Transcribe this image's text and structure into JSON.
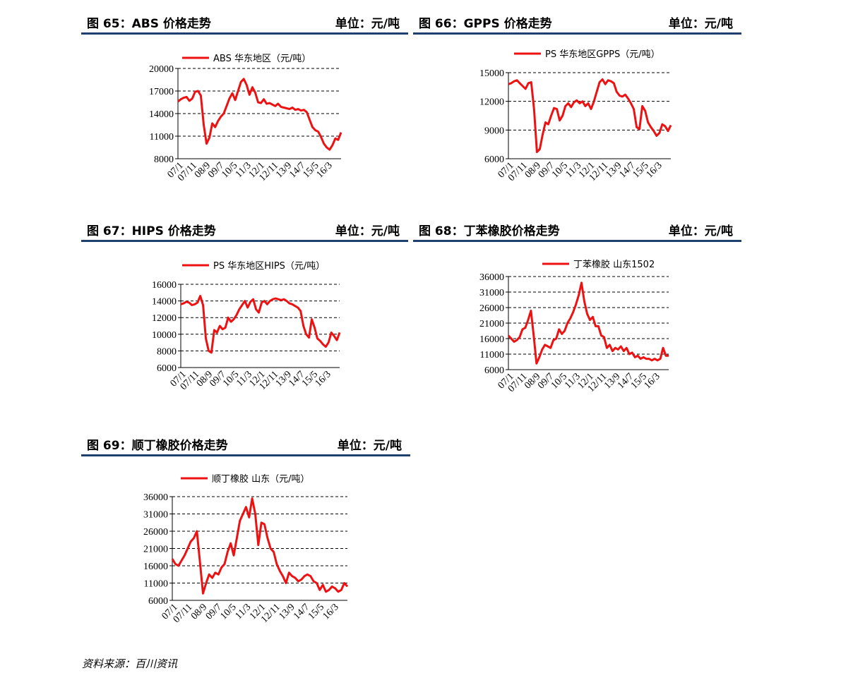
{
  "colors": {
    "line": "#ee1111",
    "header_rule": "#1f3f6e",
    "grid": "#000000"
  },
  "source": "资料来源：百川资讯",
  "x_tick_labels": [
    "07/1",
    "07/11",
    "08/9",
    "09/7",
    "10/5",
    "11/3",
    "12/1",
    "12/11",
    "13/9",
    "14/7",
    "15/5",
    "16/3"
  ],
  "panels": [
    {
      "id": "fig65",
      "title": "图 65：ABS 价格走势",
      "unit": "单位：元/吨",
      "chart_data": {
        "type": "line",
        "legend": "ABS 华东地区（元/吨）",
        "ylim": [
          8000,
          20000
        ],
        "yticks": [
          8000,
          11000,
          14000,
          17000,
          20000
        ],
        "x": [
          0,
          1,
          2,
          3,
          4,
          5,
          6,
          7,
          8,
          9,
          10,
          11,
          12,
          13,
          14,
          15,
          16,
          17,
          18,
          19,
          20,
          21,
          22,
          23,
          24,
          25,
          26,
          27,
          28,
          29,
          30,
          31,
          32,
          33,
          34,
          35,
          36,
          37,
          38,
          39,
          40,
          41,
          42,
          43,
          44,
          45,
          46,
          47,
          48,
          49,
          50,
          51,
          52,
          53,
          54,
          55,
          56,
          57
        ],
        "values": [
          15600,
          15900,
          16100,
          16200,
          15700,
          16000,
          16900,
          17000,
          16400,
          12500,
          10000,
          10800,
          12700,
          12200,
          13000,
          13600,
          14000,
          15000,
          16000,
          16700,
          15800,
          17000,
          18200,
          18600,
          17800,
          16500,
          17500,
          16800,
          15500,
          15400,
          15900,
          15300,
          15400,
          15200,
          15000,
          15300,
          14900,
          14800,
          14700,
          14600,
          14800,
          14500,
          14600,
          14400,
          14500,
          14200,
          13200,
          12200,
          11800,
          11600,
          10900,
          10000,
          9500,
          9200,
          9800,
          10700,
          10500,
          11500
        ]
      }
    },
    {
      "id": "fig66",
      "title": "图 66：GPPS 价格走势",
      "unit": "单位：元/吨",
      "chart_data": {
        "type": "line",
        "legend": "PS 华东地区GPPS（元/吨）",
        "ylim": [
          6000,
          15000
        ],
        "yticks": [
          6000,
          9000,
          12000,
          15000
        ],
        "x": [
          0,
          1,
          2,
          3,
          4,
          5,
          6,
          7,
          8,
          9,
          10,
          11,
          12,
          13,
          14,
          15,
          16,
          17,
          18,
          19,
          20,
          21,
          22,
          23,
          24,
          25,
          26,
          27,
          28,
          29,
          30,
          31,
          32,
          33,
          34,
          35,
          36,
          37,
          38,
          39,
          40,
          41,
          42,
          43,
          44,
          45,
          46,
          47,
          48,
          49,
          50,
          51,
          52,
          53,
          54,
          55,
          56,
          57
        ],
        "values": [
          13800,
          13900,
          14100,
          14200,
          13900,
          13600,
          13300,
          13900,
          14000,
          11200,
          6700,
          7000,
          8500,
          9800,
          9600,
          10500,
          11300,
          11200,
          10000,
          10500,
          11500,
          11800,
          11400,
          11900,
          12100,
          11800,
          12000,
          11500,
          11800,
          11200,
          12000,
          13000,
          14000,
          14300,
          13800,
          14200,
          14100,
          13900,
          13000,
          12600,
          12500,
          12700,
          12300,
          11800,
          11200,
          9300,
          9100,
          11500,
          11000,
          9800,
          9300,
          8900,
          8400,
          8700,
          9600,
          9400,
          8900,
          9500
        ]
      }
    },
    {
      "id": "fig67",
      "title": "图 67：HIPS 价格走势",
      "unit": "单位：元/吨",
      "chart_data": {
        "type": "line",
        "legend": "PS 华东地区HIPS（元/吨）",
        "ylim": [
          6000,
          16000
        ],
        "yticks": [
          6000,
          8000,
          10000,
          12000,
          14000,
          16000
        ],
        "x": [
          0,
          1,
          2,
          3,
          4,
          5,
          6,
          7,
          8,
          9,
          10,
          11,
          12,
          13,
          14,
          15,
          16,
          17,
          18,
          19,
          20,
          21,
          22,
          23,
          24,
          25,
          26,
          27,
          28,
          29,
          30,
          31,
          32,
          33,
          34,
          35,
          36,
          37,
          38,
          39,
          40,
          41,
          42,
          43,
          44,
          45,
          46,
          47,
          48,
          49,
          50,
          51,
          52,
          53,
          54,
          55,
          56,
          57
        ],
        "values": [
          13600,
          13700,
          13900,
          13800,
          13500,
          13600,
          13800,
          14600,
          13500,
          9500,
          8000,
          7800,
          10500,
          10200,
          11000,
          10600,
          10800,
          12000,
          11500,
          11800,
          12300,
          13000,
          13500,
          14000,
          13200,
          13900,
          14200,
          13000,
          12600,
          13800,
          14000,
          13600,
          14000,
          14200,
          14300,
          14200,
          14100,
          14200,
          14000,
          13700,
          13600,
          13400,
          13200,
          12800,
          11000,
          10000,
          9600,
          11800,
          10800,
          9500,
          9200,
          8800,
          8500,
          9000,
          10200,
          9800,
          9300,
          10200
        ]
      }
    },
    {
      "id": "fig68",
      "title": "图 68：丁苯橡胶价格走势",
      "unit": "单位：元/吨",
      "chart_data": {
        "type": "line",
        "legend": "丁苯橡胶 山东1502",
        "ylim": [
          6000,
          36000
        ],
        "yticks": [
          6000,
          11000,
          16000,
          21000,
          26000,
          31000,
          36000
        ],
        "x": [
          0,
          1,
          2,
          3,
          4,
          5,
          6,
          7,
          8,
          9,
          10,
          11,
          12,
          13,
          14,
          15,
          16,
          17,
          18,
          19,
          20,
          21,
          22,
          23,
          24,
          25,
          26,
          27,
          28,
          29,
          30,
          31,
          32,
          33,
          34,
          35,
          36,
          37,
          38,
          39,
          40,
          41,
          42,
          43,
          44,
          45,
          46,
          47,
          48,
          49,
          50,
          51,
          52,
          53,
          54,
          55,
          56,
          57
        ],
        "values": [
          17000,
          16000,
          15000,
          15500,
          16500,
          19000,
          19500,
          22000,
          25000,
          17000,
          8000,
          10000,
          12500,
          14000,
          13500,
          13000,
          15500,
          16000,
          19000,
          17500,
          18500,
          21000,
          22500,
          24500,
          27000,
          30000,
          34000,
          28000,
          24000,
          22000,
          23000,
          20000,
          20000,
          17000,
          16500,
          13000,
          14000,
          12000,
          13000,
          12500,
          13500,
          12000,
          13000,
          11000,
          11500,
          10000,
          10500,
          9500,
          10000,
          9500,
          9500,
          9000,
          9500,
          9000,
          9500,
          13000,
          10500,
          10500
        ]
      }
    },
    {
      "id": "fig69",
      "title": "图 69：顺丁橡胶价格走势",
      "unit": "单位：元/吨",
      "chart_data": {
        "type": "line",
        "legend": "顺丁橡胶 山东（元/吨）",
        "ylim": [
          6000,
          36000
        ],
        "yticks": [
          6000,
          11000,
          16000,
          21000,
          26000,
          31000,
          36000
        ],
        "x": [
          0,
          1,
          2,
          3,
          4,
          5,
          6,
          7,
          8,
          9,
          10,
          11,
          12,
          13,
          14,
          15,
          16,
          17,
          18,
          19,
          20,
          21,
          22,
          23,
          24,
          25,
          26,
          27,
          28,
          29,
          30,
          31,
          32,
          33,
          34,
          35,
          36,
          37,
          38,
          39,
          40,
          41,
          42,
          43,
          44,
          45,
          46,
          47,
          48,
          49,
          50,
          51,
          52,
          53,
          54,
          55,
          56,
          57
        ],
        "values": [
          18000,
          16500,
          16000,
          17500,
          19000,
          21000,
          23000,
          24000,
          26000,
          17000,
          8000,
          11000,
          13500,
          12500,
          14000,
          13500,
          15500,
          16500,
          20000,
          22500,
          19000,
          24000,
          29000,
          31000,
          33000,
          30000,
          35500,
          31000,
          22000,
          28500,
          28000,
          24000,
          21000,
          20000,
          16500,
          14500,
          13000,
          11000,
          14000,
          13000,
          12500,
          11500,
          12000,
          13000,
          13500,
          13000,
          11500,
          11000,
          9000,
          10500,
          8500,
          9000,
          10000,
          9500,
          8500,
          9000,
          11000,
          10000
        ]
      }
    }
  ]
}
